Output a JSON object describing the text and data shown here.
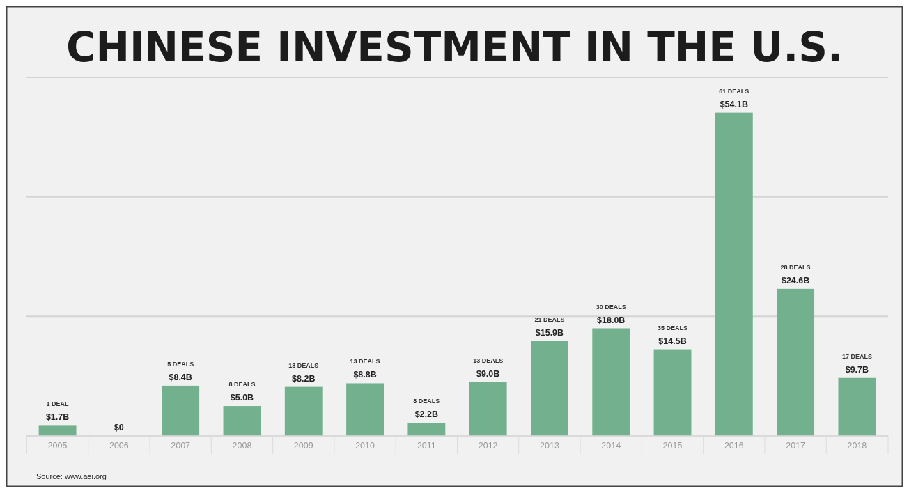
{
  "chart_data": {
    "type": "bar",
    "title": "CHINESE INVESTMENT IN THE U.S.",
    "categories": [
      "2005",
      "2006",
      "2007",
      "2008",
      "2009",
      "2010",
      "2011",
      "2012",
      "2013",
      "2014",
      "2015",
      "2016",
      "2017",
      "2018"
    ],
    "values": [
      1.7,
      0,
      8.4,
      5.0,
      8.2,
      8.8,
      2.2,
      9.0,
      15.9,
      18.0,
      14.5,
      54.1,
      24.6,
      9.7
    ],
    "value_labels": [
      "$1.7B",
      "$0",
      "$8.4B",
      "$5.0B",
      "$8.2B",
      "$8.8B",
      "$2.2B",
      "$9.0B",
      "$15.9B",
      "$18.0B",
      "$14.5B",
      "$54.1B",
      "$24.6B",
      "$9.7B"
    ],
    "color": "#72b08e",
    "ylim": [
      0,
      60
    ],
    "yticks": [
      {
        "value": 0,
        "label": null
      },
      {
        "value": 20,
        "label": null
      },
      {
        "value": 40,
        "label": null
      },
      {
        "value": 60,
        "label": null
      }
    ],
    "grid": "y",
    "tick_labels": "x",
    "annotations": [
      {
        "text": "1 DEAL",
        "x": "2005",
        "y": 1.7
      },
      {
        "text": "5 DEALS",
        "x": "2007",
        "y": 8.4
      },
      {
        "text": "8 DEALS",
        "x": "2008",
        "y": 5.0
      },
      {
        "text": "13 DEALS",
        "x": "2009",
        "y": 8.2
      },
      {
        "text": "13 DEALS",
        "x": "2010",
        "y": 8.8
      },
      {
        "text": "8 DEALS",
        "x": "2011",
        "y": 2.2
      },
      {
        "text": "13 DEALS",
        "x": "2012",
        "y": 9.0
      },
      {
        "text": "21 DEALS",
        "x": "2013",
        "y": 15.9
      },
      {
        "text": "30 DEALS",
        "x": "2014",
        "y": 18.0
      },
      {
        "text": "35 DEALS",
        "x": "2015",
        "y": 14.5
      },
      {
        "text": "61 DEALS",
        "x": "2016",
        "y": 54.1
      },
      {
        "text": "28 DEALS",
        "x": "2017",
        "y": 24.6
      },
      {
        "text": "17 DEALS",
        "x": "2018",
        "y": 9.7
      },
      "Source: www.aei.org"
    ]
  }
}
